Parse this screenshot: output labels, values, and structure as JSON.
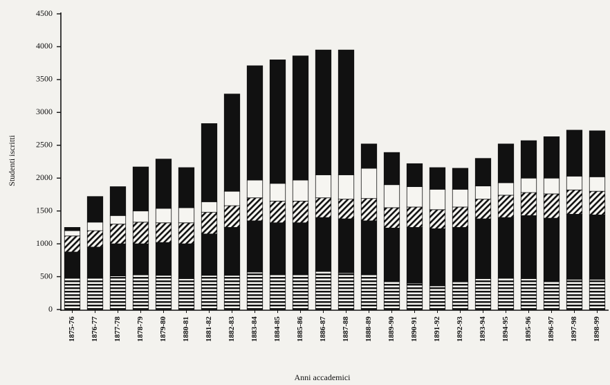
{
  "chart_data": {
    "type": "stacked_bar",
    "x_label": "Anni accademici",
    "y_label": "Studenti iscritti",
    "categories": [
      "1875-76",
      "1876-77",
      "1877-78",
      "1878-79",
      "1879-80",
      "1880-81",
      "1881-82",
      "1882-83",
      "1883-84",
      "1884-85",
      "1885-86",
      "1886-87",
      "1887-88",
      "1888-89",
      "1889-90",
      "1890-91",
      "1891-92",
      "1892-93",
      "1893-94",
      "1894-95",
      "1895-96",
      "1896-97",
      "1897-98",
      "1898-99"
    ],
    "series": [
      {
        "pattern": "hlines",
        "color": "#111111",
        "values": [
          480,
          490,
          510,
          530,
          520,
          470,
          520,
          520,
          570,
          550,
          540,
          580,
          560,
          540,
          440,
          400,
          360,
          420,
          470,
          480,
          470,
          440,
          460,
          460
        ]
      },
      {
        "pattern": "solid",
        "color": "#111111",
        "values": [
          395,
          460,
          490,
          470,
          500,
          530,
          630,
          730,
          780,
          770,
          780,
          820,
          820,
          810,
          800,
          850,
          870,
          830,
          910,
          920,
          960,
          950,
          990,
          980
        ]
      },
      {
        "pattern": "diagonal",
        "color": "#111111",
        "values": [
          245,
          250,
          300,
          330,
          300,
          320,
          330,
          330,
          350,
          330,
          330,
          300,
          300,
          340,
          310,
          310,
          290,
          310,
          300,
          340,
          350,
          370,
          370,
          360
        ]
      },
      {
        "pattern": "none",
        "color": "#111111",
        "values": [
          80,
          130,
          130,
          170,
          220,
          230,
          160,
          220,
          270,
          270,
          320,
          350,
          370,
          460,
          350,
          310,
          310,
          270,
          200,
          190,
          220,
          240,
          210,
          220
        ]
      },
      {
        "pattern": "solid",
        "color": "#111111",
        "values": [
          50,
          390,
          440,
          670,
          750,
          610,
          1190,
          1480,
          1740,
          1880,
          1890,
          1900,
          1900,
          370,
          490,
          350,
          330,
          320,
          420,
          590,
          570,
          630,
          700,
          700
        ]
      }
    ],
    "ylim": [
      0,
      4500
    ],
    "yticks": [
      0,
      500,
      1000,
      1500,
      2000,
      2500,
      3000,
      3500,
      4000,
      4500
    ]
  }
}
